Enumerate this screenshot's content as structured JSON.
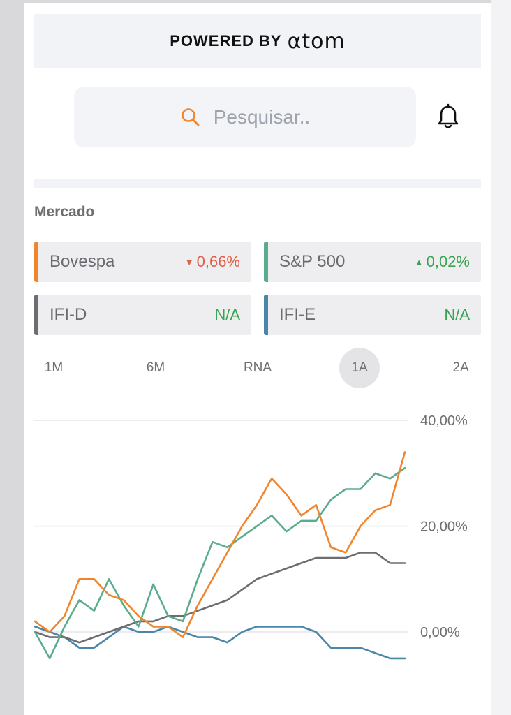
{
  "banner": {
    "powered_label": "POWERED BY",
    "brand": "αtom"
  },
  "search": {
    "placeholder": "Pesquisar.."
  },
  "section": {
    "title": "Mercado"
  },
  "colors": {
    "orange": "#f0852d",
    "green": "#5aad8c",
    "gray": "#6d6d71",
    "blue": "#4a86a8",
    "down": "#e0604a",
    "up": "#3aa34f"
  },
  "indices": [
    {
      "name": "Bovespa",
      "value": "0,66%",
      "trend": "down",
      "color": "#f0852d"
    },
    {
      "name": "S&P 500",
      "value": "0,02%",
      "trend": "up",
      "color": "#5aad8c"
    },
    {
      "name": "IFI-D",
      "value": "N/A",
      "trend": "none",
      "color": "#6d6d71"
    },
    {
      "name": "IFI-E",
      "value": "N/A",
      "trend": "none",
      "color": "#4a86a8"
    }
  ],
  "periods": [
    {
      "label": "1M",
      "active": false
    },
    {
      "label": "6M",
      "active": false
    },
    {
      "label": "RNA",
      "active": false
    },
    {
      "label": "1A",
      "active": true
    },
    {
      "label": "2A",
      "active": false
    }
  ],
  "chart_data": {
    "type": "line",
    "y_ticks": [
      "40,00%",
      "20,00%",
      "0,00%"
    ],
    "ylim": [
      -7,
      40
    ],
    "x": [
      0,
      4,
      8,
      12,
      16,
      20,
      24,
      28,
      32,
      36,
      40,
      44,
      48,
      52,
      56,
      60,
      64,
      68,
      72,
      76,
      80,
      84,
      88,
      92,
      96,
      100
    ],
    "series": [
      {
        "color": "#f0852d",
        "values": [
          2,
          0,
          3,
          10,
          10,
          7,
          6,
          3,
          1,
          1,
          -1,
          5,
          10,
          15,
          20,
          24,
          29,
          26,
          22,
          24,
          16,
          15,
          20,
          23,
          24,
          34
        ]
      },
      {
        "color": "#5aad8c",
        "values": [
          0,
          -5,
          1,
          6,
          4,
          10,
          5,
          1,
          9,
          3,
          2,
          10,
          17,
          16,
          18,
          20,
          22,
          19,
          21,
          21,
          25,
          27,
          27,
          30,
          29,
          31
        ]
      },
      {
        "color": "#6d6d71",
        "values": [
          0,
          -1,
          -1,
          -2,
          -1,
          0,
          1,
          2,
          2,
          3,
          3,
          4,
          5,
          6,
          8,
          10,
          11,
          12,
          13,
          14,
          14,
          14,
          15,
          15,
          13,
          13
        ]
      },
      {
        "color": "#4a86a8",
        "values": [
          1,
          0,
          -1,
          -3,
          -3,
          -1,
          1,
          0,
          0,
          1,
          0,
          -1,
          -1,
          -2,
          0,
          1,
          1,
          1,
          1,
          0,
          -3,
          -3,
          -3,
          -4,
          -5,
          -5
        ]
      }
    ]
  }
}
